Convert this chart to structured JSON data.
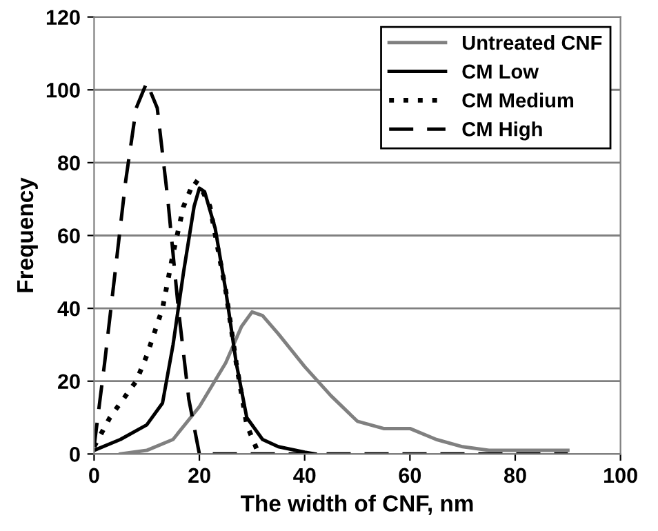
{
  "chart_data": {
    "type": "line",
    "xlabel": "The width of CNF, nm",
    "ylabel": "Frequency",
    "xlim": [
      0,
      100
    ],
    "ylim": [
      0,
      120
    ],
    "xticks": [
      0,
      20,
      40,
      60,
      80,
      100
    ],
    "yticks": [
      0,
      20,
      40,
      60,
      80,
      100,
      120
    ],
    "grid": "y",
    "legend": "top right",
    "marker": "none",
    "series": [
      {
        "name": "Untreated CNF",
        "color": "#808080",
        "line_style": "solid",
        "x": [
          5,
          10,
          15,
          20,
          25,
          28,
          30,
          32,
          35,
          40,
          45,
          50,
          55,
          60,
          65,
          70,
          75,
          80,
          85,
          90
        ],
        "values": [
          0,
          1,
          4,
          13,
          25,
          35,
          39,
          38,
          33,
          24,
          16,
          9,
          7,
          7,
          4,
          2,
          1,
          1,
          1,
          1
        ]
      },
      {
        "name": "CM Low",
        "color": "#000000",
        "line_style": "solid",
        "x": [
          0,
          5,
          10,
          13,
          15,
          17,
          19,
          20,
          21,
          23,
          25,
          27,
          29,
          32,
          35,
          40,
          42
        ],
        "values": [
          1,
          4,
          8,
          14,
          30,
          50,
          68,
          73,
          72,
          62,
          45,
          25,
          10,
          4,
          2,
          0.5,
          0
        ]
      },
      {
        "name": "CM Medium",
        "color": "#000000",
        "line_style": "dotted",
        "x": [
          0,
          3,
          5,
          8,
          10,
          13,
          15,
          17,
          19,
          20,
          22,
          25,
          27,
          29,
          31,
          32
        ],
        "values": [
          2,
          10,
          14,
          20,
          27,
          40,
          55,
          68,
          75,
          74,
          68,
          45,
          25,
          8,
          1,
          0
        ]
      },
      {
        "name": "CM High",
        "color": "#000000",
        "line_style": "dashed",
        "x": [
          0,
          2,
          4,
          6,
          8,
          10,
          12,
          14,
          16,
          18,
          20,
          90
        ],
        "values": [
          2,
          25,
          50,
          75,
          95,
          102,
          95,
          70,
          40,
          15,
          0,
          0
        ]
      }
    ]
  }
}
